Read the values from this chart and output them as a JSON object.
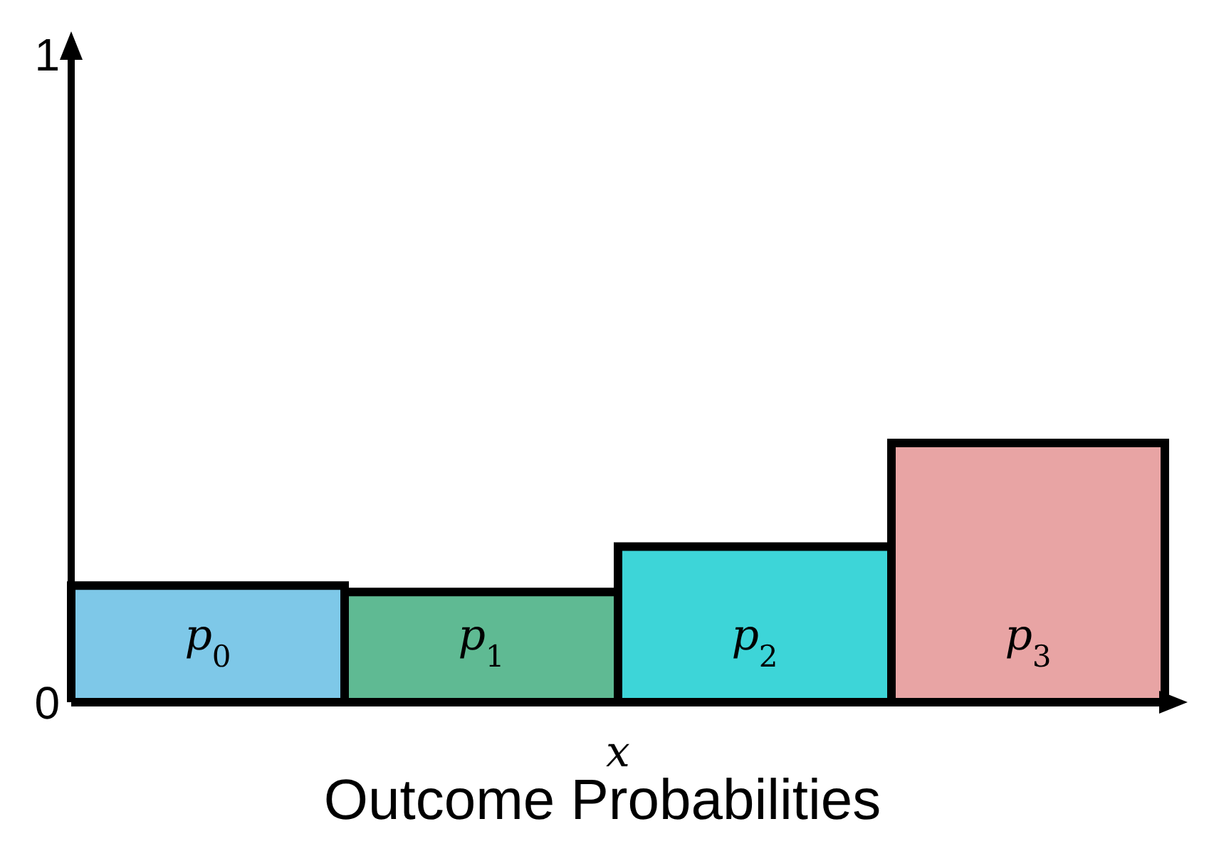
{
  "chart_data": {
    "type": "bar",
    "title": "Outcome Probabilities",
    "xlabel": "x",
    "categories": [
      "p$_{0}$",
      "p$_{1}$",
      "p$_{2}$",
      "p$_{3}$"
    ],
    "values": [
      0.18,
      0.17,
      0.24,
      0.4
    ],
    "colors": [
      "#7ec8e8",
      "#5fba93",
      "#3dd5d8",
      "#e8a4a4"
    ],
    "ylim": [
      0,
      1
    ],
    "yticks": [
      0,
      1
    ],
    "grid": false,
    "legend": false
  }
}
